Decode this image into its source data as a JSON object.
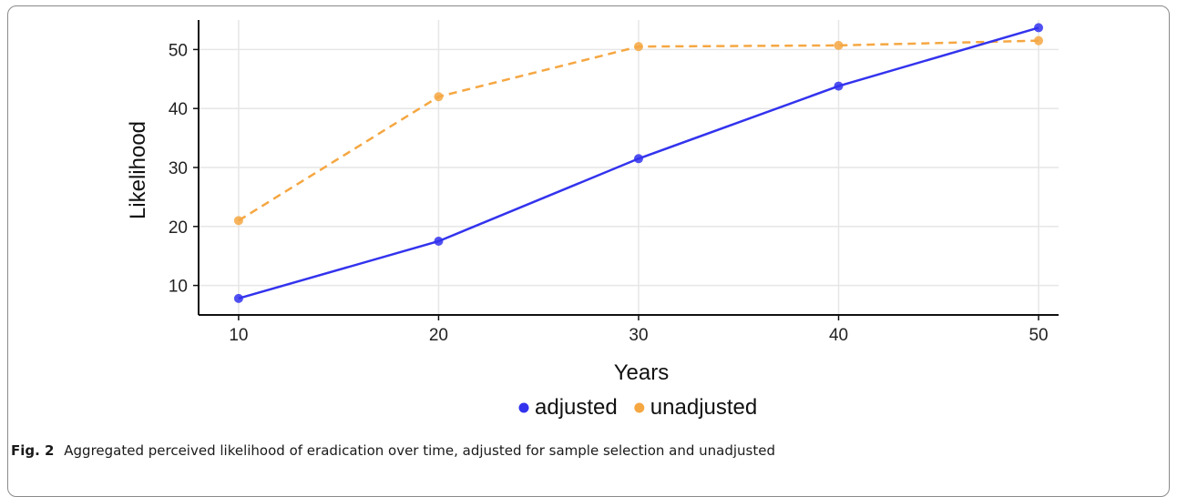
{
  "caption": {
    "label": "Fig. 2",
    "text": "Aggregated perceived likelihood of eradication over time, adjusted for sample selection and unadjusted"
  },
  "chart_data": {
    "type": "line",
    "title": "",
    "xlabel": "Years",
    "ylabel": "Likelihood",
    "x": [
      10,
      20,
      30,
      40,
      50
    ],
    "xticks": [
      "10",
      "20",
      "30",
      "40",
      "50"
    ],
    "yticks": [
      "10",
      "20",
      "30",
      "40",
      "50"
    ],
    "xlim": [
      8,
      51
    ],
    "ylim": [
      5,
      55
    ],
    "grid": true,
    "legend_position": "bottom",
    "series": [
      {
        "name": "adjusted",
        "values": [
          7.8,
          17.5,
          31.5,
          43.8,
          53.7
        ],
        "color": "#3333ee",
        "dash": "solid"
      },
      {
        "name": "unadjusted",
        "values": [
          21,
          42,
          50.5,
          50.7,
          51.5
        ],
        "color": "#f5a742",
        "dash": "dashed"
      }
    ]
  }
}
